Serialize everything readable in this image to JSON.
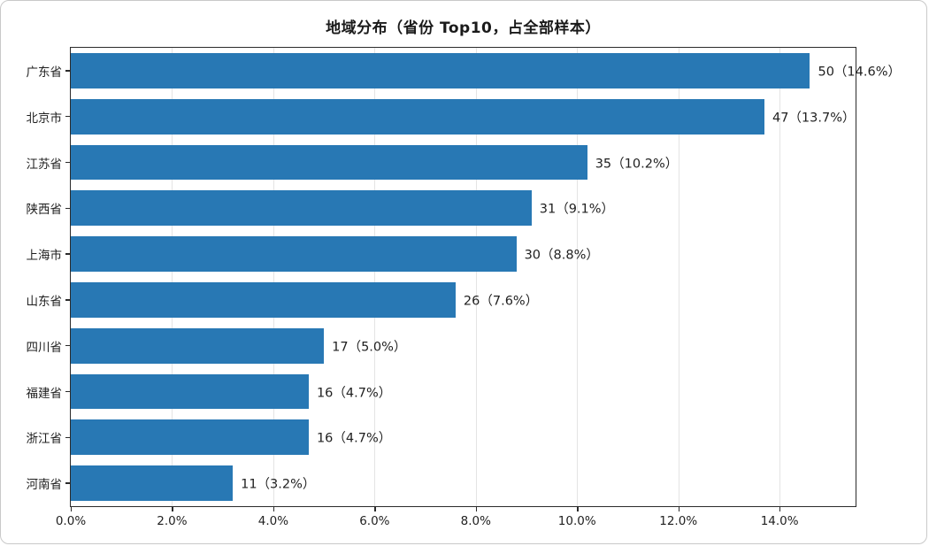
{
  "chart_data": {
    "type": "bar",
    "orientation": "horizontal",
    "title": "地域分布（省份 Top10，占全部样本）",
    "categories": [
      "广东省",
      "北京市",
      "江苏省",
      "陕西省",
      "上海市",
      "山东省",
      "四川省",
      "福建省",
      "浙江省",
      "河南省"
    ],
    "counts": [
      50,
      47,
      35,
      31,
      30,
      26,
      17,
      16,
      16,
      11
    ],
    "percents": [
      14.6,
      13.7,
      10.2,
      9.1,
      8.8,
      7.6,
      5.0,
      4.7,
      4.7,
      3.2
    ],
    "bar_labels": [
      "50（14.6%）",
      "47（13.7%）",
      "35（10.2%）",
      "31（9.1%）",
      "30（8.8%）",
      "26（7.6%）",
      "17（5.0%）",
      "16（4.7%）",
      "16（4.7%）",
      "11（3.2%）"
    ],
    "x_tick_labels": [
      "0.0%",
      "2.0%",
      "4.0%",
      "6.0%",
      "8.0%",
      "10.0%",
      "12.0%",
      "14.0%"
    ],
    "x_tick_values": [
      0,
      2,
      4,
      6,
      8,
      10,
      12,
      14
    ],
    "xlim": [
      0,
      15.5
    ],
    "bar_color": "#2878b4",
    "grid": "vertical-light",
    "legend_position": "none"
  }
}
